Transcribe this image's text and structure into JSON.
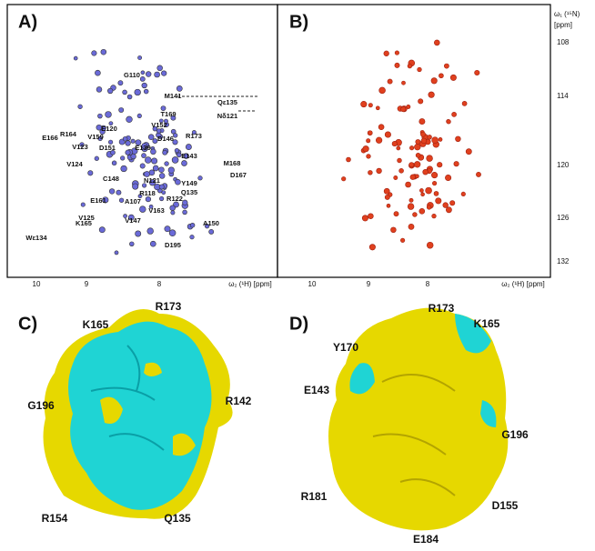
{
  "panels": [
    {
      "label": "A)",
      "x_ticks": [
        "10",
        "9",
        "8"
      ],
      "x_axis_label": "ω₂ (¹H) [ppm]",
      "peak_labels": [
        "G110",
        "M141",
        "Qε135",
        "Nδ121",
        "T169",
        "V152",
        "E120",
        "E166",
        "R164",
        "V159",
        "D146",
        "R173",
        "D151",
        "E139",
        "V123",
        "E143",
        "M168",
        "D167",
        "V124",
        "C148",
        "N121",
        "Y149",
        "R118",
        "Q135",
        "E161",
        "A107",
        "R122",
        "V163",
        "V125",
        "V147",
        "K165",
        "A150",
        "Wε134",
        "D195"
      ]
    },
    {
      "label": "B)",
      "x_ticks": [
        "10",
        "9",
        "8"
      ],
      "x_axis_label": "ω₂ (¹H) [ppm]"
    }
  ],
  "y_axis": {
    "label": "ω₁ (¹⁵N)",
    "unit": "[ppm]",
    "ticks": [
      "108",
      "114",
      "120",
      "126",
      "132"
    ]
  },
  "surfaces": [
    {
      "label": "C)",
      "residues": [
        "R173",
        "K165",
        "R142",
        "G196",
        "R154",
        "Q135"
      ]
    },
    {
      "label": "D)",
      "residues": [
        "R173",
        "K165",
        "Y170",
        "E143",
        "G196",
        "R181",
        "D155",
        "E184"
      ]
    }
  ]
}
